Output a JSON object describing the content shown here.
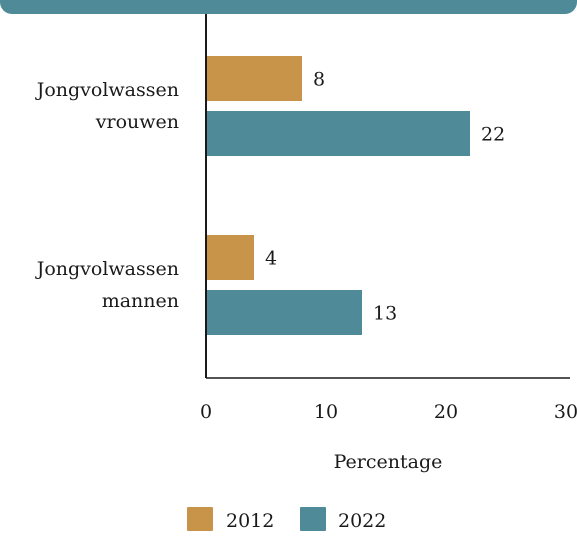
{
  "chart_data": {
    "type": "bar",
    "orientation": "horizontal",
    "categories": [
      [
        "Jongvolwassen",
        "vrouwen"
      ],
      [
        "Jongvolwassen",
        "mannen"
      ]
    ],
    "series": [
      {
        "name": "2012",
        "color": "#c8944a",
        "values": [
          8,
          4
        ]
      },
      {
        "name": "2022",
        "color": "#4e8a98",
        "values": [
          22,
          13
        ]
      }
    ],
    "xlabel": "Percentage",
    "xlim": [
      0,
      30
    ],
    "xticks": [
      0,
      10,
      20,
      30
    ],
    "grid": false,
    "legend_position": "bottom-center"
  }
}
